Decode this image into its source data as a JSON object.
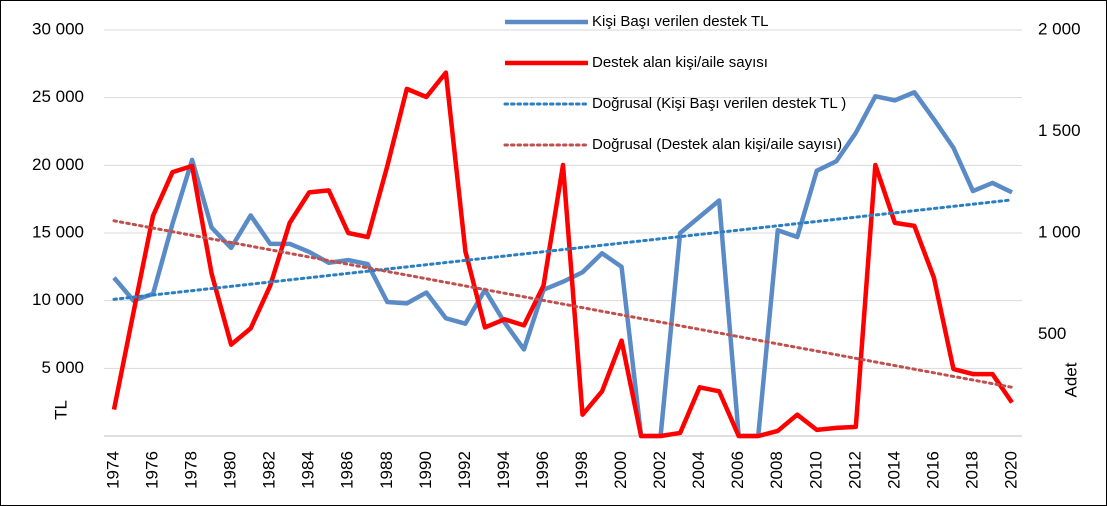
{
  "chart_data": {
    "type": "line",
    "y_label": "TL",
    "y2_label": "Adet",
    "x": [
      1974,
      1975,
      1976,
      1977,
      1978,
      1979,
      1980,
      1981,
      1982,
      1983,
      1984,
      1985,
      1986,
      1987,
      1988,
      1989,
      1990,
      1991,
      1992,
      1993,
      1994,
      1995,
      1996,
      1997,
      1998,
      1999,
      2000,
      2001,
      2002,
      2003,
      2004,
      2005,
      2006,
      2007,
      2008,
      2009,
      2010,
      2011,
      2012,
      2013,
      2014,
      2015,
      2016,
      2017,
      2018,
      2019,
      2020
    ],
    "xlim": [
      1974,
      2020
    ],
    "xticks": [
      1974,
      1976,
      1978,
      1980,
      1982,
      1984,
      1986,
      1988,
      1990,
      1992,
      1994,
      1996,
      1998,
      2000,
      2002,
      2004,
      2006,
      2008,
      2010,
      2012,
      2014,
      2016,
      2018,
      2020
    ],
    "ylim": [
      0,
      30000
    ],
    "yticks": [
      {
        "value": 5000,
        "label": "5 000"
      },
      {
        "value": 10000,
        "label": "10 000"
      },
      {
        "value": 15000,
        "label": "15 000"
      },
      {
        "value": 20000,
        "label": "20 000"
      },
      {
        "value": 25000,
        "label": "25 000"
      },
      {
        "value": 30000,
        "label": "30 000"
      }
    ],
    "y2lim": [
      0,
      2000
    ],
    "y2ticks": [
      500,
      {
        "value": 1000,
        "label": "1 000"
      },
      {
        "value": 1500,
        "label": "1 500"
      },
      {
        "value": 2000,
        "label": "2 000"
      }
    ],
    "grid": true,
    "series": [
      {
        "name": "Kişi Başı verilen destek TL",
        "color": "#5b8bc6",
        "style": "solid",
        "values": [
          11700,
          10000,
          10500,
          15700,
          20400,
          15400,
          13900,
          16300,
          14200,
          14200,
          13600,
          12800,
          13000,
          12700,
          9900,
          9800,
          10600,
          8700,
          8300,
          10800,
          8400,
          6400,
          10800,
          11400,
          12100,
          13500,
          12500,
          0,
          0,
          15000,
          16200,
          17400,
          0,
          0,
          15200,
          14700,
          19600,
          20300,
          22400,
          25100,
          24800,
          25400,
          23400,
          21300,
          18100,
          18700,
          18000
        ]
      },
      {
        "name": "Destek alan kişi/aile sayısı",
        "color": "#ff0000",
        "style": "solid",
        "axis": "y2",
        "values": [
          130,
          610,
          1085,
          1300,
          1330,
          800,
          450,
          530,
          740,
          1050,
          1200,
          1210,
          1000,
          980,
          1330,
          1710,
          1670,
          1790,
          910,
          535,
          575,
          545,
          740,
          1335,
          105,
          220,
          470,
          0,
          0,
          15,
          240,
          220,
          0,
          0,
          25,
          105,
          30,
          40,
          45,
          1335,
          1050,
          1035,
          780,
          330,
          305,
          305,
          165
        ]
      },
      {
        "name": "Doğrusal (Kişi Başı verilen destek TL )",
        "color": "#2a7fc1",
        "style": "dotted",
        "x": [
          1974,
          2020
        ],
        "values": [
          10100,
          17450
        ]
      },
      {
        "name": "Doğrusal (Destek alan kişi/aile sayısı)",
        "color": "#c0504d",
        "style": "dotted",
        "axis": "y2",
        "x": [
          1974,
          2020
        ],
        "values": [
          1060,
          240
        ]
      }
    ]
  }
}
